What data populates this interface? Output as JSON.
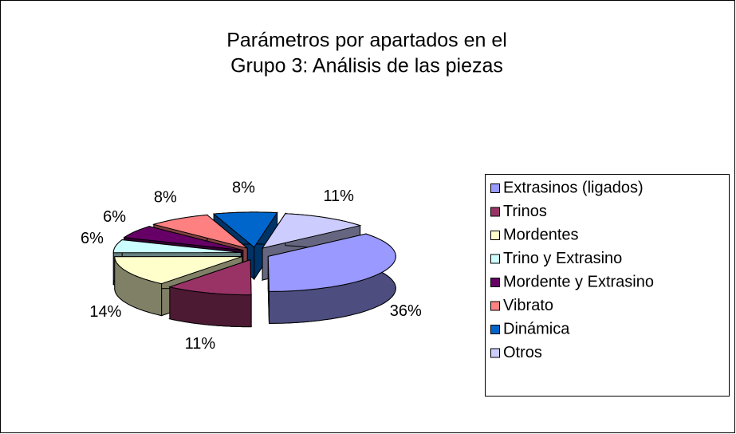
{
  "chart_data": {
    "type": "pie",
    "title": [
      "Parámetros por apartados en el",
      "Grupo 3: Análisis de las piezas"
    ],
    "categories": [
      "Extrasinos (ligados)",
      "Trinos",
      "Mordentes",
      "Trino y Extrasino",
      "Mordente y Extrasino",
      "Vibrato",
      "Dinámica",
      "Otros"
    ],
    "values": [
      36,
      11,
      14,
      6,
      6,
      8,
      8,
      11
    ],
    "value_labels": [
      "36%",
      "11%",
      "14%",
      "6%",
      "6%",
      "8%",
      "8%",
      "11%"
    ],
    "colors": [
      "#9999ff",
      "#993366",
      "#ffffcc",
      "#ccffff",
      "#660066",
      "#ff8080",
      "#0066cc",
      "#ccccff"
    ],
    "legend": "right"
  }
}
